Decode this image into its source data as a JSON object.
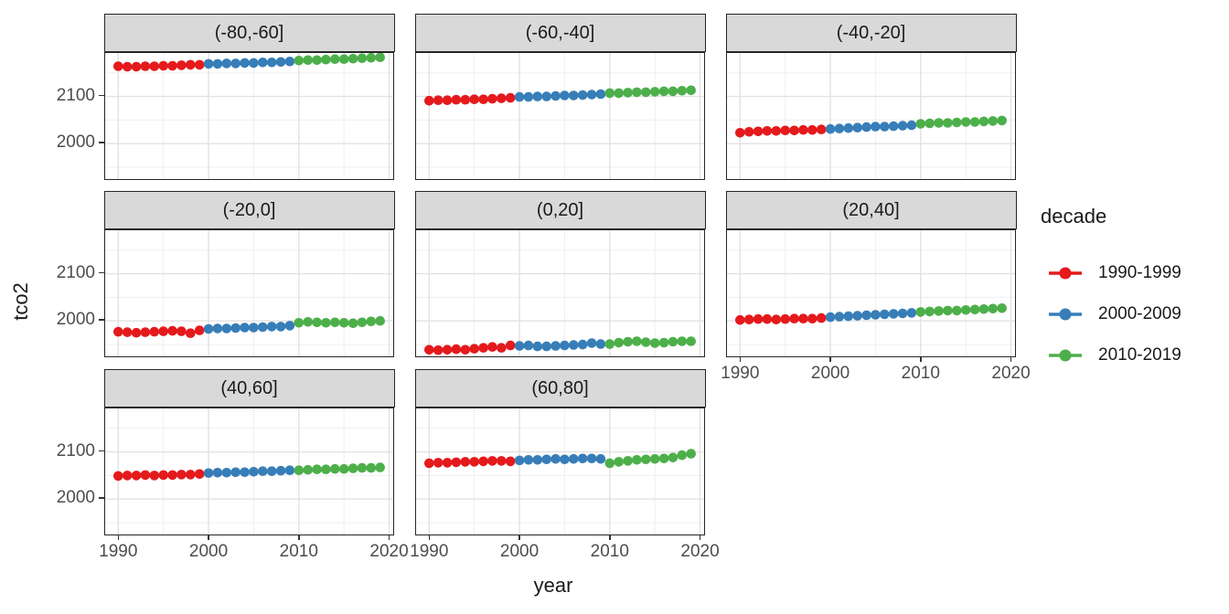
{
  "legend": {
    "title": "decade",
    "entries": [
      {
        "label": "1990-1999",
        "color": "#E41A1C"
      },
      {
        "label": "2000-2009",
        "color": "#377EB8"
      },
      {
        "label": "2010-2019",
        "color": "#4DAF4A"
      }
    ]
  },
  "chart_data": {
    "type": "scatter",
    "xlabel": "year",
    "ylabel": "tco2",
    "xlim": [
      1988.55,
      2020.45
    ],
    "ylim": [
      1925,
      2192
    ],
    "x_ticks": [
      1990,
      2000,
      2010,
      2020
    ],
    "x_minor_ticks": [
      1995,
      2005,
      2015
    ],
    "y_ticks": [
      2100,
      2000
    ],
    "y_minor_ticks": [
      1950,
      2050,
      2150
    ],
    "grid": true,
    "legend_position": "right",
    "decades": [
      {
        "name": "1990-1999",
        "color": "#E41A1C",
        "start_year": 1990
      },
      {
        "name": "2000-2009",
        "color": "#377EB8",
        "start_year": 2000
      },
      {
        "name": "2010-2019",
        "color": "#4DAF4A",
        "start_year": 2010
      }
    ],
    "facets": [
      {
        "label": "(-80,-60]",
        "values": {
          "1990-1999": [
            2164,
            2163,
            2163,
            2164,
            2164,
            2165,
            2165,
            2166,
            2167,
            2167
          ],
          "2000-2009": [
            2169,
            2169,
            2170,
            2170,
            2171,
            2171,
            2172,
            2172,
            2173,
            2174
          ],
          "2010-2019": [
            2176,
            2177,
            2177,
            2178,
            2179,
            2179,
            2180,
            2181,
            2182,
            2183
          ]
        }
      },
      {
        "label": "(-60,-40]",
        "values": {
          "1990-1999": [
            2091,
            2092,
            2092,
            2093,
            2093,
            2094,
            2094,
            2095,
            2096,
            2097
          ],
          "2000-2009": [
            2099,
            2099,
            2100,
            2100,
            2101,
            2102,
            2102,
            2103,
            2104,
            2105
          ],
          "2010-2019": [
            2107,
            2107,
            2108,
            2109,
            2109,
            2110,
            2111,
            2111,
            2112,
            2113
          ]
        }
      },
      {
        "label": "(-40,-20]",
        "values": {
          "1990-1999": [
            2023,
            2025,
            2026,
            2027,
            2027,
            2028,
            2028,
            2029,
            2029,
            2030
          ],
          "2000-2009": [
            2031,
            2032,
            2033,
            2034,
            2035,
            2036,
            2036,
            2037,
            2038,
            2039
          ],
          "2010-2019": [
            2042,
            2043,
            2044,
            2044,
            2045,
            2046,
            2046,
            2047,
            2048,
            2049
          ]
        }
      },
      {
        "label": "(-20,0]",
        "values": {
          "1990-1999": [
            1977,
            1976,
            1975,
            1976,
            1977,
            1978,
            1979,
            1978,
            1974,
            1980
          ],
          "2000-2009": [
            1983,
            1984,
            1984,
            1985,
            1986,
            1986,
            1987,
            1988,
            1988,
            1990
          ],
          "2010-2019": [
            1996,
            1998,
            1997,
            1996,
            1997,
            1996,
            1995,
            1997,
            1999,
            2000
          ]
        }
      },
      {
        "label": "(0,20]",
        "values": {
          "1990-1999": [
            1939,
            1938,
            1939,
            1940,
            1939,
            1941,
            1943,
            1945,
            1943,
            1948
          ],
          "2000-2009": [
            1947,
            1948,
            1946,
            1946,
            1947,
            1948,
            1949,
            1950,
            1953,
            1951
          ],
          "2010-2019": [
            1951,
            1954,
            1956,
            1957,
            1955,
            1953,
            1954,
            1956,
            1957,
            1957
          ]
        }
      },
      {
        "label": "(20,40]",
        "values": {
          "1990-1999": [
            2002,
            2003,
            2004,
            2004,
            2003,
            2004,
            2005,
            2005,
            2005,
            2006
          ],
          "2000-2009": [
            2008,
            2009,
            2010,
            2011,
            2012,
            2013,
            2014,
            2015,
            2016,
            2017
          ],
          "2010-2019": [
            2019,
            2020,
            2021,
            2022,
            2022,
            2023,
            2024,
            2025,
            2026,
            2027
          ]
        }
      },
      {
        "label": "(40,60]",
        "values": {
          "1990-1999": [
            2049,
            2050,
            2050,
            2051,
            2050,
            2051,
            2051,
            2052,
            2052,
            2053
          ],
          "2000-2009": [
            2055,
            2056,
            2056,
            2057,
            2057,
            2058,
            2059,
            2059,
            2060,
            2061
          ],
          "2010-2019": [
            2061,
            2062,
            2063,
            2063,
            2064,
            2064,
            2065,
            2066,
            2066,
            2067
          ]
        }
      },
      {
        "label": "(60,80]",
        "values": {
          "1990-1999": [
            2076,
            2077,
            2077,
            2078,
            2079,
            2079,
            2080,
            2081,
            2081,
            2080
          ],
          "2000-2009": [
            2082,
            2083,
            2083,
            2084,
            2085,
            2084,
            2085,
            2086,
            2086,
            2085
          ],
          "2010-2019": [
            2076,
            2079,
            2081,
            2083,
            2084,
            2085,
            2086,
            2088,
            2093,
            2096
          ]
        }
      }
    ]
  },
  "style": {
    "strip_bg": "#d9d9d9",
    "panel_border": "#262626",
    "grid_major": "#e2e2e2",
    "grid_minor": "#efefef",
    "tick_color": "#333333",
    "tick_text": "#4d4d4d"
  }
}
